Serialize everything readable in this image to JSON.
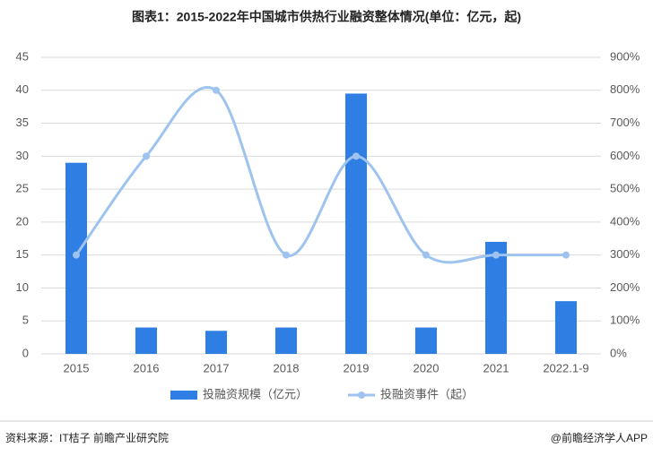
{
  "chart_data": {
    "type": "bar-line",
    "title": "图表1：2015-2022年中国城市供热行业融资整体情况(单位：亿元，起)",
    "categories": [
      "2015",
      "2016",
      "2017",
      "2018",
      "2019",
      "2020",
      "2021",
      "2022.1-9"
    ],
    "series": [
      {
        "name": "投融资规模（亿元）",
        "color": "#2f7ee3",
        "type": "bar",
        "values": [
          29,
          4,
          3.5,
          4,
          39.5,
          4,
          17,
          8
        ]
      },
      {
        "name": "投融资事件（起）",
        "color": "#9ec3ef",
        "type": "line",
        "axis": "y2",
        "values": [
          300,
          600,
          800,
          300,
          600,
          300,
          300,
          300
        ]
      }
    ],
    "ylim": [
      0,
      45
    ],
    "yticks": [
      0,
      5,
      10,
      15,
      20,
      25,
      30,
      35,
      40,
      45
    ],
    "y2lim": [
      0,
      900
    ],
    "y2ticks": [
      {
        "value": 0,
        "label": "0%"
      },
      {
        "value": 100,
        "label": "100%"
      },
      {
        "value": 200,
        "label": "200%"
      },
      {
        "value": 300,
        "label": "300%"
      },
      {
        "value": 400,
        "label": "400%"
      },
      {
        "value": 500,
        "label": "500%"
      },
      {
        "value": 600,
        "label": "600%"
      },
      {
        "value": 700,
        "label": "700%"
      },
      {
        "value": 800,
        "label": "800%"
      },
      {
        "value": 900,
        "label": "900%"
      }
    ],
    "grid": true,
    "source": "资料来源：IT桔子 前瞻产业研究院",
    "credit": "@前瞻经济学人APP"
  }
}
